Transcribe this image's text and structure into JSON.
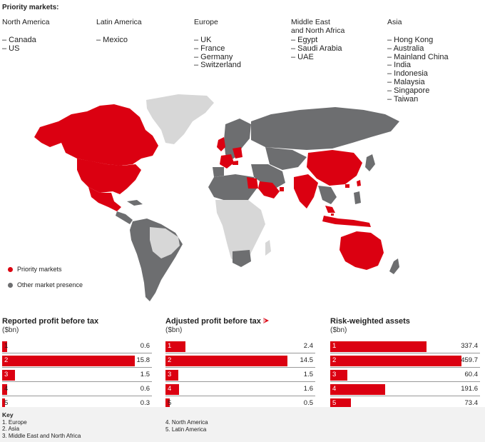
{
  "title": "Priority markets:",
  "regions": [
    {
      "name": "North America",
      "markets": [
        "– Canada",
        "– US"
      ]
    },
    {
      "name": "Latin America",
      "markets": [
        "– Mexico"
      ]
    },
    {
      "name": "Europe",
      "markets": [
        "– UK",
        "– France",
        "– Germany",
        "– Switzerland"
      ]
    },
    {
      "name": "Middle East\nand North Africa",
      "markets": [
        "– Egypt",
        "– Saudi Arabia",
        "– UAE"
      ]
    },
    {
      "name": "Asia",
      "markets": [
        "– Hong Kong",
        "– Australia",
        "– Mainland China",
        "– India",
        "– Indonesia",
        "– Malaysia",
        "– Singapore",
        "– Taiwan"
      ]
    }
  ],
  "legend": {
    "priority": "Priority markets",
    "other": "Other market presence"
  },
  "colors": {
    "priority": "#db0011",
    "other": "#6d6e70",
    "none": "#d7d7d7",
    "bar": "#db0011"
  },
  "chart_data": [
    {
      "type": "bar",
      "title": "Reported profit before tax",
      "unit": "($bn)",
      "categories": [
        "1",
        "2",
        "3",
        "4",
        "5"
      ],
      "values": [
        0.6,
        15.8,
        1.5,
        0.6,
        0.3
      ],
      "labels": [
        "0.6",
        "15.8",
        "1.5",
        "0.6",
        "0.3"
      ],
      "max": 17.8
    },
    {
      "type": "bar",
      "title": "Adjusted profit before tax",
      "unit": "($bn)",
      "categories": [
        "1",
        "2",
        "3",
        "4",
        "5"
      ],
      "values": [
        2.4,
        14.5,
        1.5,
        1.6,
        0.5
      ],
      "labels": [
        "2.4",
        "14.5",
        "1.5",
        "1.6",
        "0.5"
      ],
      "max": 17.8
    },
    {
      "type": "bar",
      "title": "Risk-weighted assets",
      "unit": "($bn)",
      "categories": [
        "1",
        "2",
        "3",
        "4",
        "5"
      ],
      "values": [
        337.4,
        459.7,
        60.4,
        191.6,
        73.4
      ],
      "labels": [
        "337.4",
        "459.7",
        "60.4",
        "191.6",
        "73.4"
      ],
      "max": 525
    }
  ],
  "key": {
    "heading": "Key",
    "items_left": [
      "1. Europe",
      "2. Asia",
      "3. Middle East and North Africa"
    ],
    "items_right": [
      "4. North America",
      "5. Latin America"
    ]
  }
}
